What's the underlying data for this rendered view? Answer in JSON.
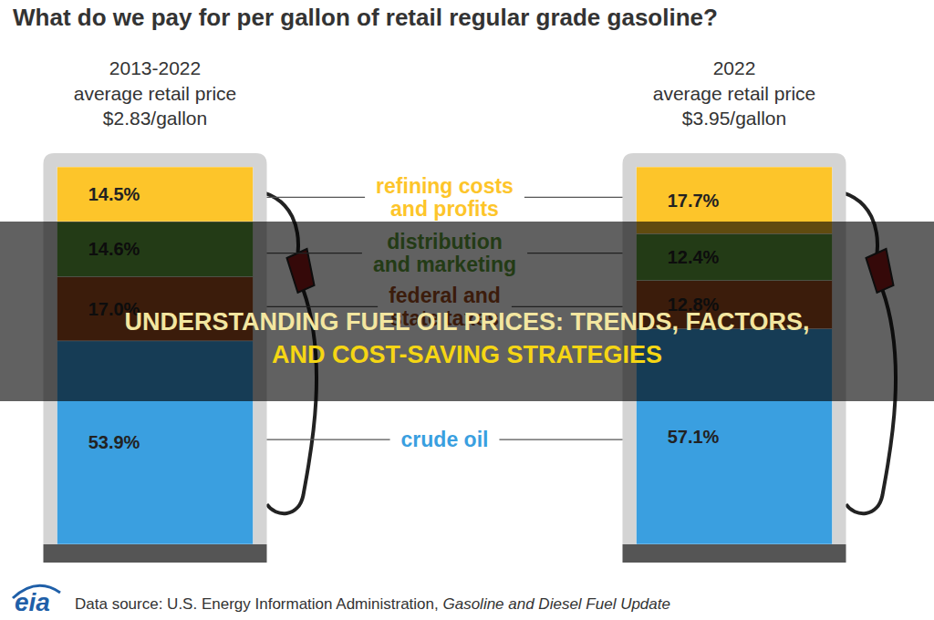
{
  "chart_data": {
    "type": "bar",
    "stacked": true,
    "title": "What do we pay for per gallon of retail regular grade gasoline?",
    "categories": [
      "2013-2022",
      "2022"
    ],
    "annotations": [
      [
        "average retail price",
        "$2.83/gallon"
      ],
      [
        "average retail price",
        "$3.95/gallon"
      ]
    ],
    "series": [
      {
        "name": "crude oil",
        "color": "#3a9fe0",
        "values": [
          53.9,
          57.1
        ],
        "value_labels": [
          "53.9%",
          "57.1%"
        ]
      },
      {
        "name": "federal and state taxes",
        "color": "#9c4b1e",
        "values": [
          17.0,
          12.8
        ],
        "value_labels": [
          "17.0%",
          "12.8%"
        ]
      },
      {
        "name": "distribution and marketing",
        "color": "#5e9c3a",
        "values": [
          14.6,
          12.4
        ],
        "value_labels": [
          "14.6%",
          "12.4%"
        ]
      },
      {
        "name": "refining costs and profits",
        "color": "#fdc52a",
        "values": [
          14.5,
          17.7
        ],
        "value_labels": [
          "14.5%",
          "17.7%"
        ]
      }
    ],
    "ylim": [
      0,
      100
    ],
    "tick_labels": false,
    "data_labels": true,
    "grid": false
  },
  "banner": [
    "UNDERSTANDING FUEL OIL PRICES: TRENDS, FACTORS,",
    "AND COST-SAVING STRATEGIES"
  ],
  "logo": "eia",
  "source": {
    "text": "Data source: U.S. Energy Information Administration,",
    "italic": "Gasoline and Diesel Fuel Update"
  }
}
